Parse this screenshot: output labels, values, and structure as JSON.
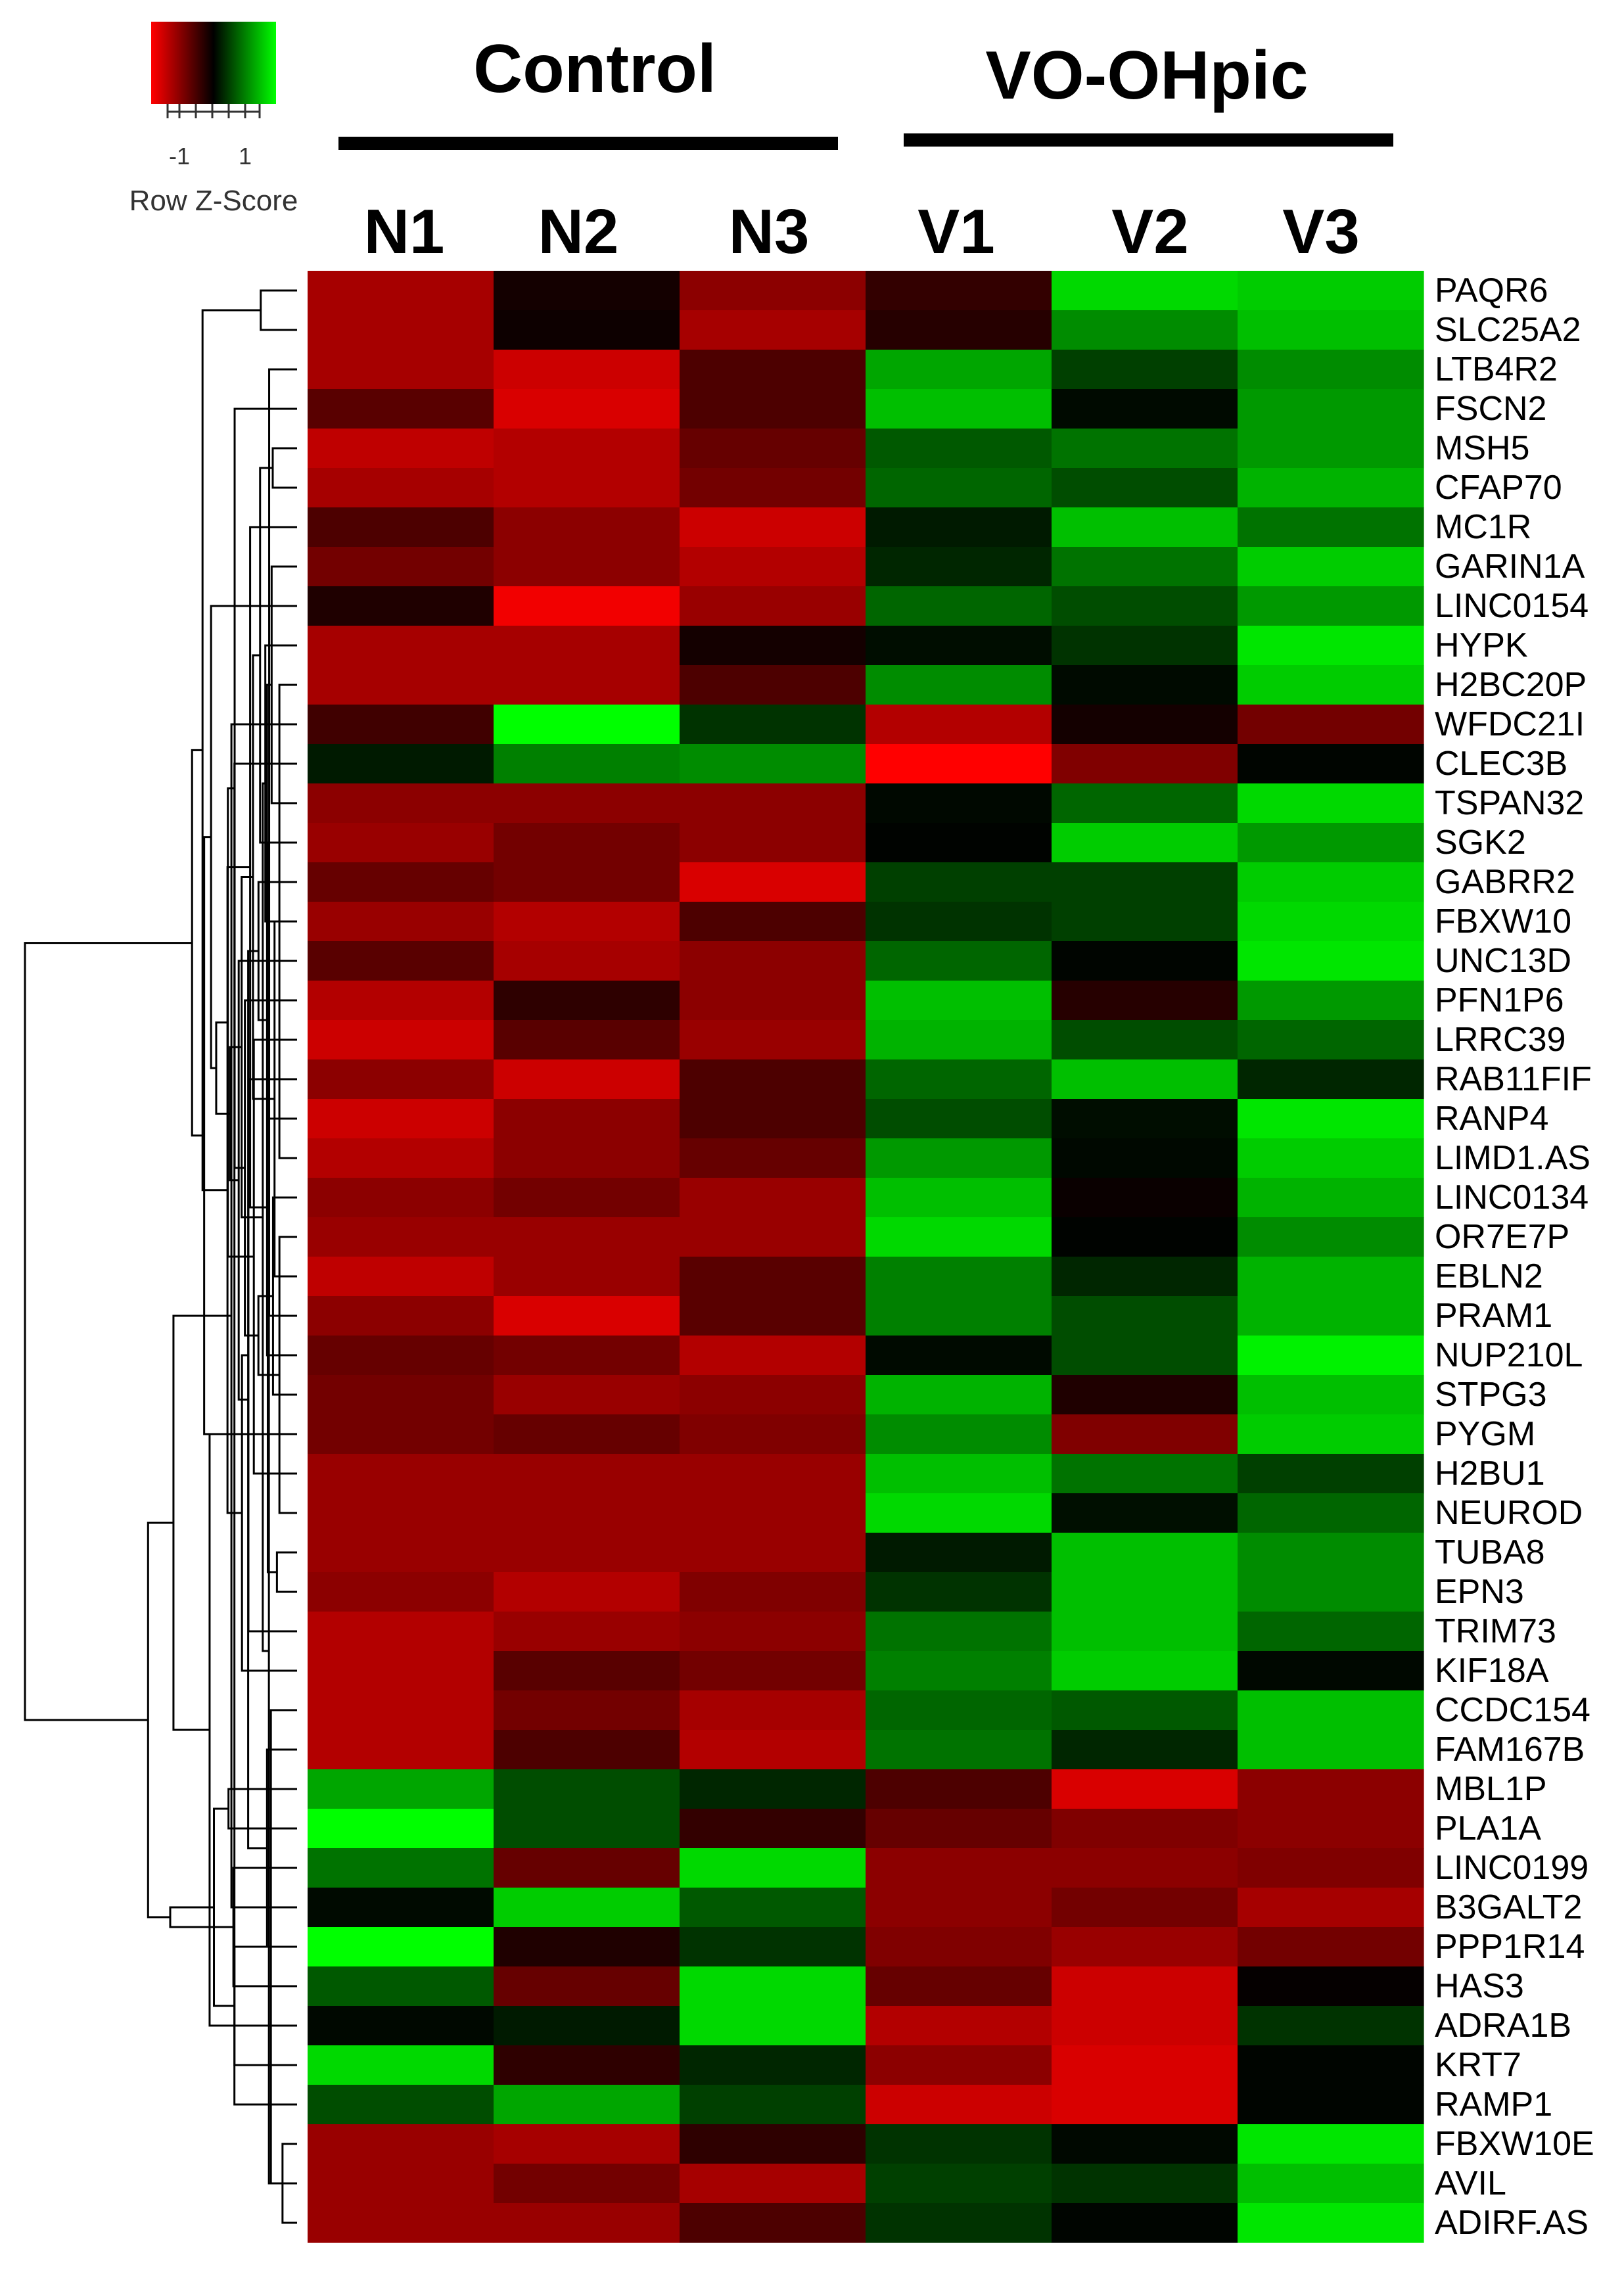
{
  "chart_data": {
    "type": "heatmap",
    "title": "",
    "color_key": {
      "title": "Row Z-Score",
      "tick_labels": [
        "-1",
        "1"
      ],
      "colors": [
        "#ff0000",
        "#000000",
        "#00ff00"
      ]
    },
    "groups": [
      {
        "label": "Control",
        "columns": [
          "N1",
          "N2",
          "N3"
        ]
      },
      {
        "label": "VO-OHpic",
        "columns": [
          "V1",
          "V2",
          "V3"
        ]
      }
    ],
    "columns": [
      "N1",
      "N2",
      "N3",
      "V1",
      "V2",
      "V3"
    ],
    "rows": [
      "PAQR6",
      "SLC25A2",
      "LTB4R2",
      "FSCN2",
      "MSH5",
      "CFAP70",
      "MC1R",
      "GARIN1A",
      "LINC0154",
      "HYPK",
      "H2BC20P",
      "WFDC21I",
      "CLEC3B",
      "TSPAN32",
      "SGK2",
      "GABRR2",
      "FBXW10",
      "UNC13D",
      "PFN1P6",
      "LRRC39",
      "RAB11FIF",
      "RANP4",
      "LIMD1.AS",
      "LINC0134",
      "OR7E7P",
      "EBLN2",
      "PRAM1",
      "NUP210L",
      "STPG3",
      "PYGM",
      "H2BU1",
      "NEUROD",
      "TUBA8",
      "EPN3",
      "TRIM73",
      "KIF18A",
      "CCDC154",
      "FAM167B",
      "MBL1P",
      "PLA1A",
      "LINC0199",
      "B3GALT2",
      "PPP1R14",
      "HAS3",
      "ADRA1B",
      "KRT7",
      "RAMP1",
      "FBXW10E",
      "AVIL",
      "ADIRF.AS"
    ],
    "values": [
      [
        -0.65,
        -0.08,
        -0.55,
        -0.2,
        0.85,
        0.8
      ],
      [
        -0.65,
        -0.05,
        -0.65,
        -0.15,
        0.55,
        0.75
      ],
      [
        -0.65,
        -0.8,
        -0.3,
        0.65,
        0.25,
        0.55
      ],
      [
        -0.35,
        -0.85,
        -0.3,
        0.75,
        0.04,
        0.6
      ],
      [
        -0.75,
        -0.7,
        -0.4,
        0.35,
        0.45,
        0.6
      ],
      [
        -0.65,
        -0.7,
        -0.45,
        0.4,
        0.3,
        0.7
      ],
      [
        -0.3,
        -0.55,
        -0.8,
        0.1,
        0.75,
        0.45
      ],
      [
        -0.45,
        -0.55,
        -0.7,
        0.15,
        0.45,
        0.8
      ],
      [
        -0.12,
        -0.95,
        -0.6,
        0.4,
        0.3,
        0.6
      ],
      [
        -0.65,
        -0.65,
        -0.08,
        0.05,
        0.2,
        0.9
      ],
      [
        -0.65,
        -0.65,
        -0.3,
        0.55,
        0.04,
        0.8
      ],
      [
        -0.25,
        1.0,
        0.2,
        -0.7,
        -0.08,
        -0.45
      ],
      [
        0.1,
        0.5,
        0.55,
        -1.0,
        -0.5,
        0.02
      ],
      [
        -0.55,
        -0.55,
        -0.55,
        0.03,
        0.4,
        0.85
      ],
      [
        -0.6,
        -0.45,
        -0.55,
        0.01,
        0.8,
        0.6
      ],
      [
        -0.4,
        -0.45,
        -0.85,
        0.25,
        0.25,
        0.8
      ],
      [
        -0.6,
        -0.7,
        -0.3,
        0.2,
        0.25,
        0.85
      ],
      [
        -0.35,
        -0.65,
        -0.55,
        0.4,
        0.02,
        0.9
      ],
      [
        -0.7,
        -0.18,
        -0.55,
        0.75,
        -0.15,
        0.6
      ],
      [
        -0.8,
        -0.35,
        -0.6,
        0.7,
        0.3,
        0.4
      ],
      [
        -0.55,
        -0.8,
        -0.3,
        0.4,
        0.75,
        0.15
      ],
      [
        -0.8,
        -0.55,
        -0.3,
        0.3,
        0.05,
        0.9
      ],
      [
        -0.7,
        -0.55,
        -0.4,
        0.6,
        0.03,
        0.8
      ],
      [
        -0.55,
        -0.45,
        -0.6,
        0.75,
        -0.04,
        0.7
      ],
      [
        -0.6,
        -0.6,
        -0.6,
        0.85,
        0.01,
        0.55
      ],
      [
        -0.75,
        -0.6,
        -0.35,
        0.5,
        0.15,
        0.7
      ],
      [
        -0.55,
        -0.85,
        -0.35,
        0.5,
        0.3,
        0.7
      ],
      [
        -0.4,
        -0.45,
        -0.7,
        0.04,
        0.3,
        0.95
      ],
      [
        -0.45,
        -0.6,
        -0.55,
        0.7,
        -0.12,
        0.75
      ],
      [
        -0.45,
        -0.4,
        -0.5,
        0.55,
        -0.5,
        0.8
      ],
      [
        -0.6,
        -0.6,
        -0.6,
        0.75,
        0.45,
        0.25
      ],
      [
        -0.6,
        -0.6,
        -0.6,
        0.85,
        0.06,
        0.4
      ],
      [
        -0.6,
        -0.6,
        -0.6,
        0.1,
        0.75,
        0.55
      ],
      [
        -0.55,
        -0.7,
        -0.5,
        0.2,
        0.75,
        0.55
      ],
      [
        -0.7,
        -0.6,
        -0.55,
        0.45,
        0.75,
        0.4
      ],
      [
        -0.7,
        -0.35,
        -0.45,
        0.5,
        0.8,
        0.03
      ],
      [
        -0.7,
        -0.45,
        -0.65,
        0.4,
        0.35,
        0.75
      ],
      [
        -0.7,
        -0.3,
        -0.7,
        0.45,
        0.15,
        0.75
      ],
      [
        0.65,
        0.3,
        0.15,
        -0.3,
        -0.85,
        -0.55
      ],
      [
        1.0,
        0.3,
        -0.2,
        -0.4,
        -0.5,
        -0.55
      ],
      [
        0.45,
        -0.4,
        0.85,
        -0.55,
        -0.55,
        -0.5
      ],
      [
        0.04,
        0.8,
        0.35,
        -0.55,
        -0.45,
        -0.65
      ],
      [
        1.0,
        -0.12,
        0.2,
        -0.5,
        -0.6,
        -0.45
      ],
      [
        0.35,
        -0.4,
        0.85,
        -0.4,
        -0.8,
        -0.02
      ],
      [
        0.03,
        0.1,
        0.85,
        -0.7,
        -0.8,
        0.2
      ],
      [
        0.85,
        -0.18,
        0.15,
        -0.55,
        -0.85,
        0.02
      ],
      [
        0.3,
        0.65,
        0.25,
        -0.8,
        -0.85,
        0.02
      ],
      [
        -0.6,
        -0.65,
        -0.18,
        0.2,
        0.03,
        0.9
      ],
      [
        -0.6,
        -0.45,
        -0.65,
        0.25,
        0.2,
        0.75
      ],
      [
        -0.6,
        -0.6,
        -0.3,
        0.2,
        0.02,
        0.9
      ]
    ]
  }
}
